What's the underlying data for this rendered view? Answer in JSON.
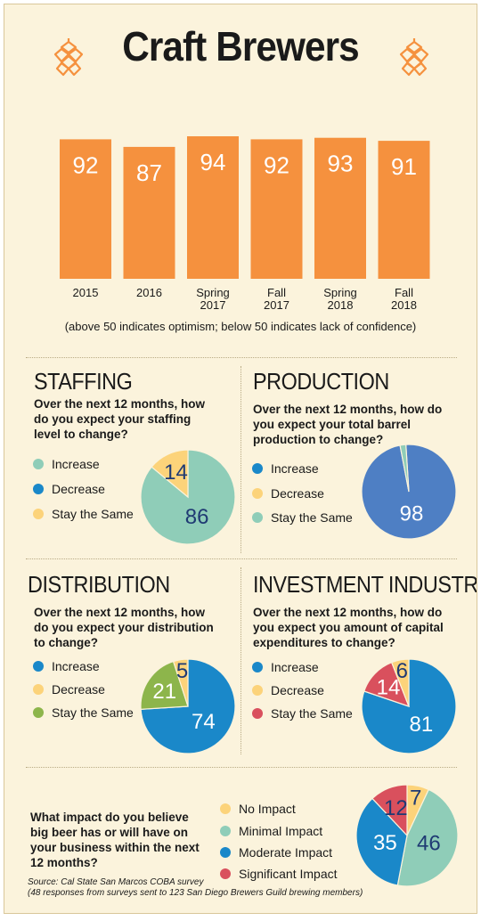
{
  "title": "Craft Brewers",
  "colors": {
    "orange": "#f5913e",
    "teal": "#8fcdb8",
    "blue": "#1a88c9",
    "slate_blue": "#4e7fc4",
    "yellow": "#fcd37a",
    "green": "#8db54b",
    "red": "#d9505d",
    "dark_navy": "#1f3a73"
  },
  "chart_data": [
    {
      "type": "bar",
      "categories": [
        "2015",
        "2016",
        "Spring 2017",
        "Fall 2017",
        "Spring 2018",
        "Fall 2018"
      ],
      "category_lines": [
        [
          "2015"
        ],
        [
          "2016"
        ],
        [
          "Spring",
          "2017"
        ],
        [
          "Fall",
          "2017"
        ],
        [
          "Spring",
          "2018"
        ],
        [
          "Fall",
          "2018"
        ]
      ],
      "values": [
        92,
        87,
        94,
        92,
        93,
        91
      ],
      "ylim": [
        0,
        94
      ],
      "note": "(above 50 indicates optimism; below 50 indicates lack of confidence)"
    },
    {
      "type": "pie",
      "title": "STAFFING",
      "question": "Over the next 12 months, how do you expect your staffing level to change?",
      "legend": [
        "Increase",
        "Decrease",
        "Stay the Same"
      ],
      "legend_colors": [
        "#8fcdb8",
        "#1a88c9",
        "#fcd37a"
      ],
      "slices": [
        {
          "label": "Increase",
          "value": 86,
          "color": "#8fcdb8"
        },
        {
          "label": "Stay the Same",
          "value": 14,
          "color": "#fcd37a"
        }
      ]
    },
    {
      "type": "pie",
      "title": "PRODUCTION",
      "question": "Over the next 12 months, how do you expect your total barrel production to change?",
      "legend": [
        "Increase",
        "Decrease",
        "Stay the Same"
      ],
      "legend_colors": [
        "#1a88c9",
        "#fcd37a",
        "#8fcdb8"
      ],
      "slices": [
        {
          "label": "Increase",
          "value": 98,
          "color": "#4e7fc4"
        },
        {
          "label": "Stay the Same",
          "value": 2,
          "color": "#8fcdb8"
        }
      ]
    },
    {
      "type": "pie",
      "title": "DISTRIBUTION",
      "question": "Over the next 12 months, how do you expect your distribution to change?",
      "legend": [
        "Increase",
        "Decrease",
        "Stay the Same"
      ],
      "legend_colors": [
        "#1a88c9",
        "#fcd37a",
        "#8db54b"
      ],
      "slices": [
        {
          "label": "Increase",
          "value": 74,
          "color": "#1a88c9"
        },
        {
          "label": "Stay the Same",
          "value": 21,
          "color": "#8db54b"
        },
        {
          "label": "Decrease",
          "value": 5,
          "color": "#fcd37a"
        }
      ]
    },
    {
      "type": "pie",
      "title": "INVESTMENT INDUSTRY",
      "question": "Over the next 12 months, how do you expect you amount of capital expenditures to change?",
      "legend": [
        "Increase",
        "Decrease",
        "Stay the Same"
      ],
      "legend_colors": [
        "#1a88c9",
        "#fcd37a",
        "#d9505d"
      ],
      "slices": [
        {
          "label": "Increase",
          "value": 81,
          "color": "#1a88c9"
        },
        {
          "label": "Stay the Same",
          "value": 14,
          "color": "#d9505d"
        },
        {
          "label": "Decrease",
          "value": 6,
          "color": "#fcd37a"
        }
      ]
    },
    {
      "type": "pie",
      "title": "",
      "question": "What impact do you believe big beer has or will have on your business within the next 12 months?",
      "legend": [
        "No Impact",
        "Minimal Impact",
        "Moderate Impact",
        "Significant Impact"
      ],
      "legend_colors": [
        "#fcd37a",
        "#8fcdb8",
        "#1a88c9",
        "#d9505d"
      ],
      "slices": [
        {
          "label": "No Impact",
          "value": 7,
          "color": "#fcd37a"
        },
        {
          "label": "Minimal Impact",
          "value": 46,
          "color": "#8fcdb8"
        },
        {
          "label": "Moderate Impact",
          "value": 35,
          "color": "#1a88c9"
        },
        {
          "label": "Significant Impact",
          "value": 12,
          "color": "#d9505d"
        }
      ]
    }
  ],
  "source": {
    "line1": "Source: Cal State San Marcos COBA survey",
    "line2": "(48 responses from surveys sent to 123 San Diego Brewers Guild brewing members)"
  }
}
